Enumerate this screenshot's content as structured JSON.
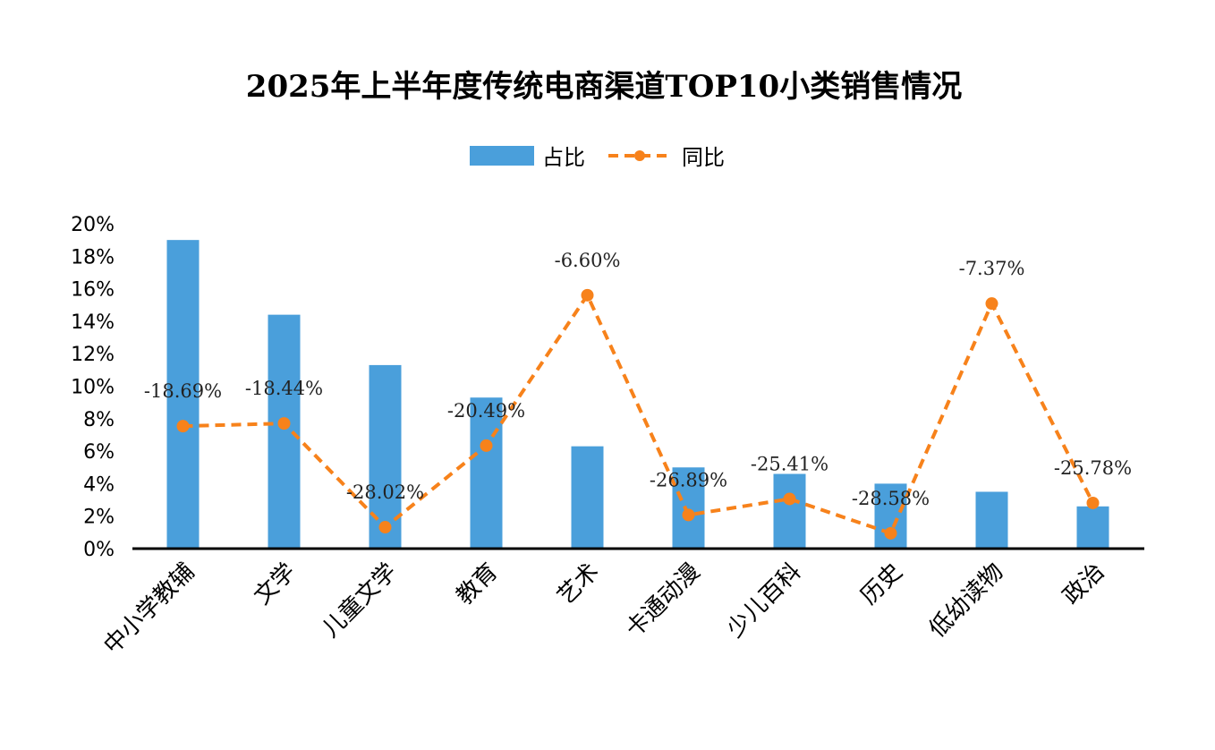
{
  "chart_data": {
    "type": "bar+line",
    "title": "2025年上半年度传统电商渠道TOP10小类销售情况",
    "categories": [
      "中小学教辅",
      "文学",
      "儿童文学",
      "教育",
      "艺术",
      "卡通动漫",
      "少儿百科",
      "历史",
      "低幼读物",
      "政治"
    ],
    "series": [
      {
        "name": "占比",
        "type": "bar",
        "axis": "primary",
        "color": "#4A9FDB",
        "values": [
          19.0,
          14.4,
          11.3,
          9.3,
          6.3,
          5.0,
          4.6,
          4.0,
          3.5,
          2.6
        ]
      },
      {
        "name": "同比",
        "type": "line",
        "axis": "secondary",
        "style": "dashed",
        "marker": "circle",
        "color": "#F7821B",
        "values": [
          -18.69,
          -18.44,
          -28.02,
          -20.49,
          -6.6,
          -26.89,
          -25.41,
          -28.58,
          -7.37,
          -25.78
        ],
        "labels": [
          "-18.69%",
          "-18.44%",
          "-28.02%",
          "-20.49%",
          "-6.60%",
          "-26.89%",
          "-25.41%",
          "-28.58%",
          "-7.37%",
          "-25.78%"
        ]
      }
    ],
    "ylim": [
      0,
      20
    ],
    "yticks": [
      "0%",
      "2%",
      "4%",
      "6%",
      "8%",
      "10%",
      "12%",
      "14%",
      "16%",
      "18%",
      "20%"
    ],
    "secondary_ylim": [
      -30,
      0
    ],
    "secondary_axis_visible": false,
    "grid": false,
    "legend_position": "top",
    "xlabel": "",
    "ylabel": ""
  }
}
